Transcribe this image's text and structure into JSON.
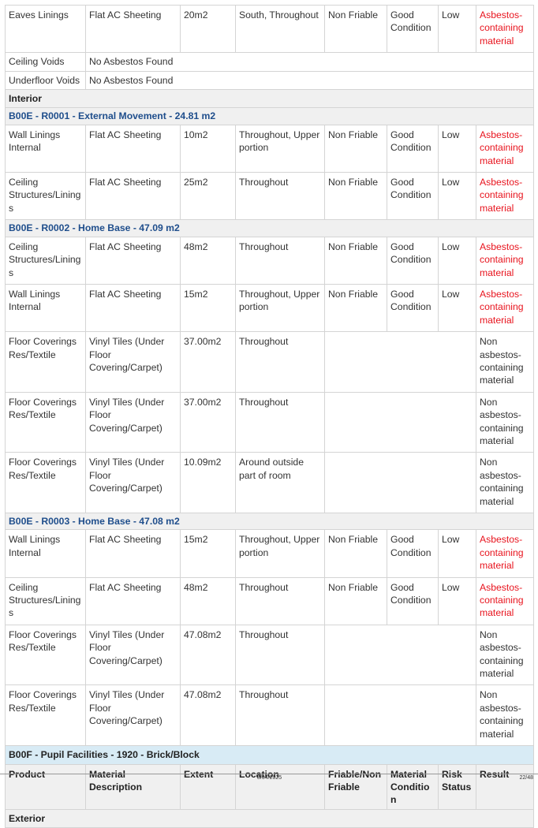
{
  "table": {
    "rows": [
      [
        "Eaves Linings",
        "Flat AC Sheeting",
        "20m2",
        "South, Throughout",
        "Non Friable",
        "Good Condition",
        "Low",
        "Asbestos-containing material"
      ],
      [
        "Ceiling Voids",
        "No Asbestos Found"
      ],
      [
        "Underfloor Voids",
        "No Asbestos Found"
      ],
      "Interior",
      "B00E - R0001 - External Movement - 24.81 m2",
      [
        "Wall Linings Internal",
        "Flat AC Sheeting",
        "10m2",
        "Throughout, Upper portion",
        "Non Friable",
        "Good Condition",
        "Low",
        "Asbestos-containing material"
      ],
      [
        "Ceiling Structures/Linings",
        "Flat AC Sheeting",
        "25m2",
        "Throughout",
        "Non Friable",
        "Good Condition",
        "Low",
        "Asbestos-containing material"
      ],
      "B00E - R0002 - Home Base - 47.09 m2",
      [
        "Ceiling Structures/Linings",
        "Flat AC Sheeting",
        "48m2",
        "Throughout",
        "Non Friable",
        "Good Condition",
        "Low",
        "Asbestos-containing material"
      ],
      [
        "Wall Linings Internal",
        "Flat AC Sheeting",
        "15m2",
        "Throughout, Upper portion",
        "Non Friable",
        "Good Condition",
        "Low",
        "Asbestos-containing material"
      ],
      [
        "Floor Coverings Res/Textile",
        "Vinyl Tiles (Under Floor Covering/Carpet)",
        "37.00m2",
        "Throughout",
        "Non asbestos-containing material"
      ],
      [
        "Floor Coverings Res/Textile",
        "Vinyl Tiles (Under Floor Covering/Carpet)",
        "37.00m2",
        "Throughout",
        "Non asbestos-containing material"
      ],
      [
        "Floor Coverings Res/Textile",
        "Vinyl Tiles (Under Floor Covering/Carpet)",
        "10.09m2",
        "Around outside part of room",
        "Non asbestos-containing material"
      ],
      "B00E - R0003 - Home Base - 47.08 m2",
      [
        "Wall Linings Internal",
        "Flat AC Sheeting",
        "15m2",
        "Throughout, Upper portion",
        "Non Friable",
        "Good Condition",
        "Low",
        "Asbestos-containing material"
      ],
      [
        "Ceiling Structures/Linings",
        "Flat AC Sheeting",
        "48m2",
        "Throughout",
        "Non Friable",
        "Good Condition",
        "Low",
        "Asbestos-containing material"
      ],
      [
        "Floor Coverings Res/Textile",
        "Vinyl Tiles (Under Floor Covering/Carpet)",
        "47.08m2",
        "Throughout",
        "Non asbestos-containing material"
      ],
      [
        "Floor Coverings Res/Textile",
        "Vinyl Tiles (Under Floor Covering/Carpet)",
        "47.08m2",
        "Throughout",
        "Non asbestos-containing material"
      ],
      "B00F - Pupil Facilities - 1920 - Brick/Block",
      [
        "Product",
        "Material Description",
        "Extent",
        "Location",
        "Friable/Non Friable",
        "Material Condition",
        "Risk Status",
        "Result"
      ],
      "Exterior"
    ]
  },
  "footer": {
    "date": "8/04/2025",
    "page": "22/48"
  }
}
